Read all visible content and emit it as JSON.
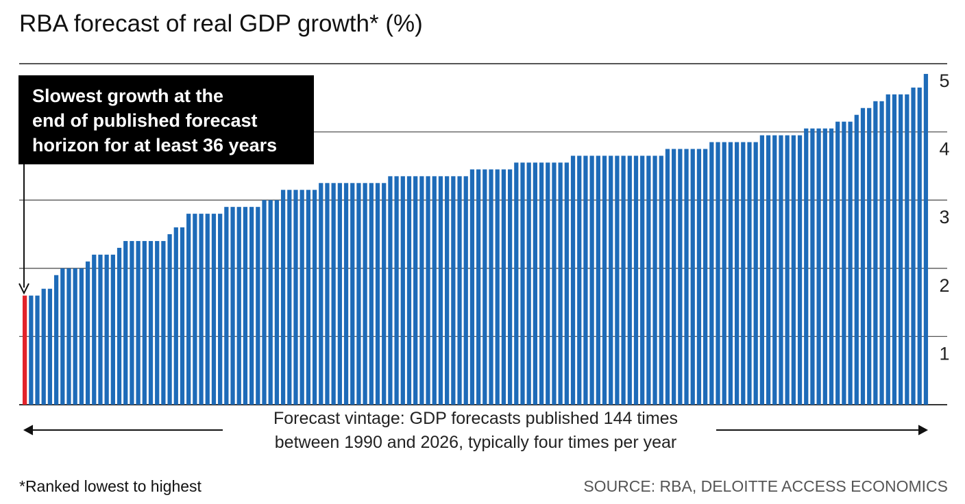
{
  "chart_data": {
    "type": "bar",
    "title": "RBA forecast of real GDP growth* (%)",
    "xlabel": "Forecast vintage: GDP forecasts published 144 times between 1990 and 2026, typically four times per year",
    "xlabel_lines": [
      "Forecast vintage: GDP forecasts published 144 times",
      "between 1990 and 2026, typically four times per year"
    ],
    "ylabel": "",
    "ylim": [
      0,
      5
    ],
    "yticks": [
      "1",
      "2",
      "3",
      "4",
      "5"
    ],
    "y_axis_side": "right",
    "grid": true,
    "annotation": {
      "lines": [
        "Slowest growth at the",
        "end of published forecast",
        "horizon for at least 36 years"
      ],
      "target_index": 0
    },
    "footnote": "*Ranked lowest to highest",
    "source": "SOURCE: RBA, DELOITTE ACCESS ECONOMICS",
    "colors": {
      "bar": "#1e6bb8",
      "highlight": "#e2232a",
      "annotation_bg": "#000000"
    },
    "highlight_index": 0,
    "values": [
      1.6,
      1.6,
      1.6,
      1.7,
      1.7,
      1.9,
      2.0,
      2.0,
      2.0,
      2.0,
      2.1,
      2.2,
      2.2,
      2.2,
      2.2,
      2.3,
      2.4,
      2.4,
      2.4,
      2.4,
      2.4,
      2.4,
      2.4,
      2.5,
      2.6,
      2.6,
      2.8,
      2.8,
      2.8,
      2.8,
      2.8,
      2.8,
      2.9,
      2.9,
      2.9,
      2.9,
      2.9,
      2.9,
      3.0,
      3.0,
      3.0,
      3.15,
      3.15,
      3.15,
      3.15,
      3.15,
      3.15,
      3.25,
      3.25,
      3.25,
      3.25,
      3.25,
      3.25,
      3.25,
      3.25,
      3.25,
      3.25,
      3.25,
      3.35,
      3.35,
      3.35,
      3.35,
      3.35,
      3.35,
      3.35,
      3.35,
      3.35,
      3.35,
      3.35,
      3.35,
      3.35,
      3.45,
      3.45,
      3.45,
      3.45,
      3.45,
      3.45,
      3.45,
      3.55,
      3.55,
      3.55,
      3.55,
      3.55,
      3.55,
      3.55,
      3.55,
      3.55,
      3.65,
      3.65,
      3.65,
      3.65,
      3.65,
      3.65,
      3.65,
      3.65,
      3.65,
      3.65,
      3.65,
      3.65,
      3.65,
      3.65,
      3.65,
      3.75,
      3.75,
      3.75,
      3.75,
      3.75,
      3.75,
      3.75,
      3.85,
      3.85,
      3.85,
      3.85,
      3.85,
      3.85,
      3.85,
      3.85,
      3.95,
      3.95,
      3.95,
      3.95,
      3.95,
      3.95,
      3.95,
      4.05,
      4.05,
      4.05,
      4.05,
      4.05,
      4.15,
      4.15,
      4.15,
      4.25,
      4.35,
      4.35,
      4.45,
      4.45,
      4.55,
      4.55,
      4.55,
      4.55,
      4.65,
      4.65,
      4.85
    ]
  }
}
